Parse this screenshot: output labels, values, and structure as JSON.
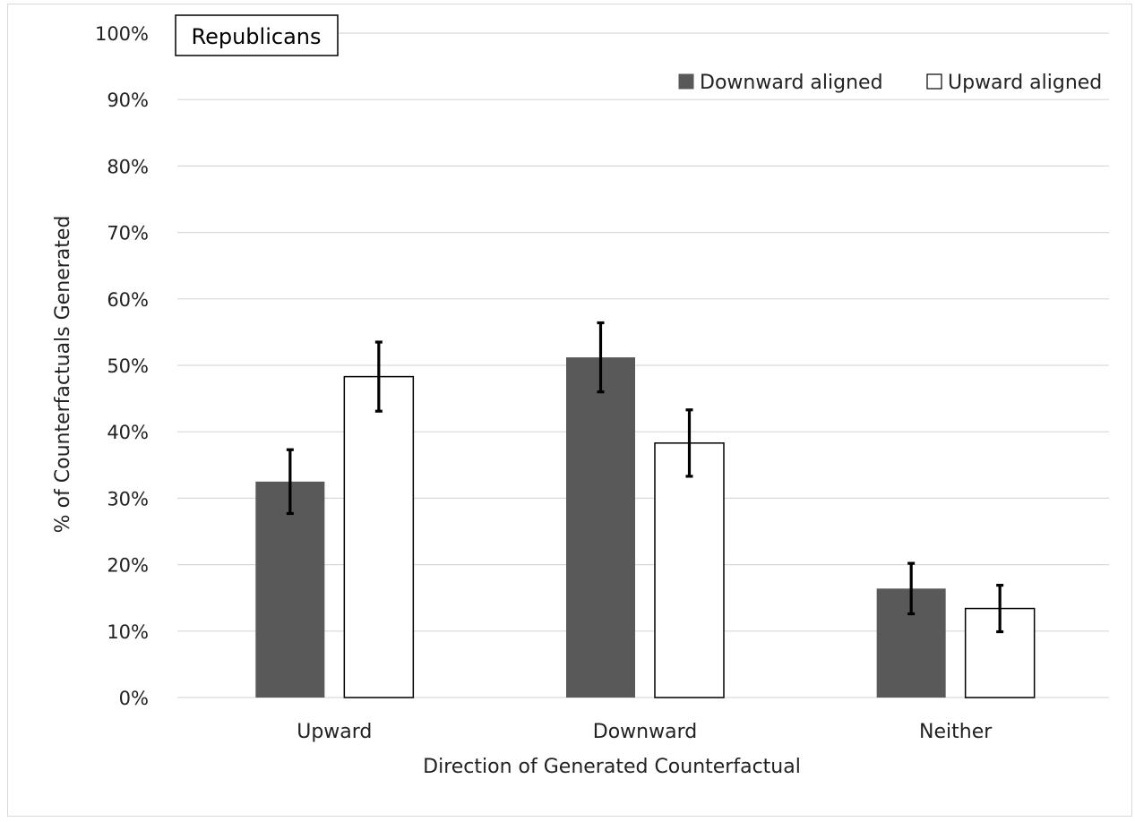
{
  "chart_data": {
    "type": "bar",
    "panel_label": "Republicans",
    "categories": [
      "Upward",
      "Downward",
      "Neither"
    ],
    "series": [
      {
        "name": "Downward aligned",
        "values": [
          32.5,
          51.2,
          16.4
        ],
        "error": [
          4.8,
          5.2,
          3.8
        ]
      },
      {
        "name": "Upward aligned",
        "values": [
          48.3,
          38.3,
          13.4
        ],
        "error": [
          5.2,
          5.0,
          3.5
        ]
      }
    ],
    "xlabel": "Direction of Generated Counterfactual",
    "ylabel": "% of Counterfactuals Generated",
    "ylim": [
      0,
      100
    ],
    "yticks": [
      "0%",
      "10%",
      "20%",
      "30%",
      "40%",
      "50%",
      "60%",
      "70%",
      "80%",
      "90%",
      "100%"
    ],
    "legend_position": "top-right",
    "grid": true,
    "colors": {
      "downward_aligned": "#595959",
      "upward_aligned": "#ffffff",
      "bar_outline": "#000000",
      "gridline": "#d9d9d9",
      "error_bar": "#000000"
    }
  }
}
